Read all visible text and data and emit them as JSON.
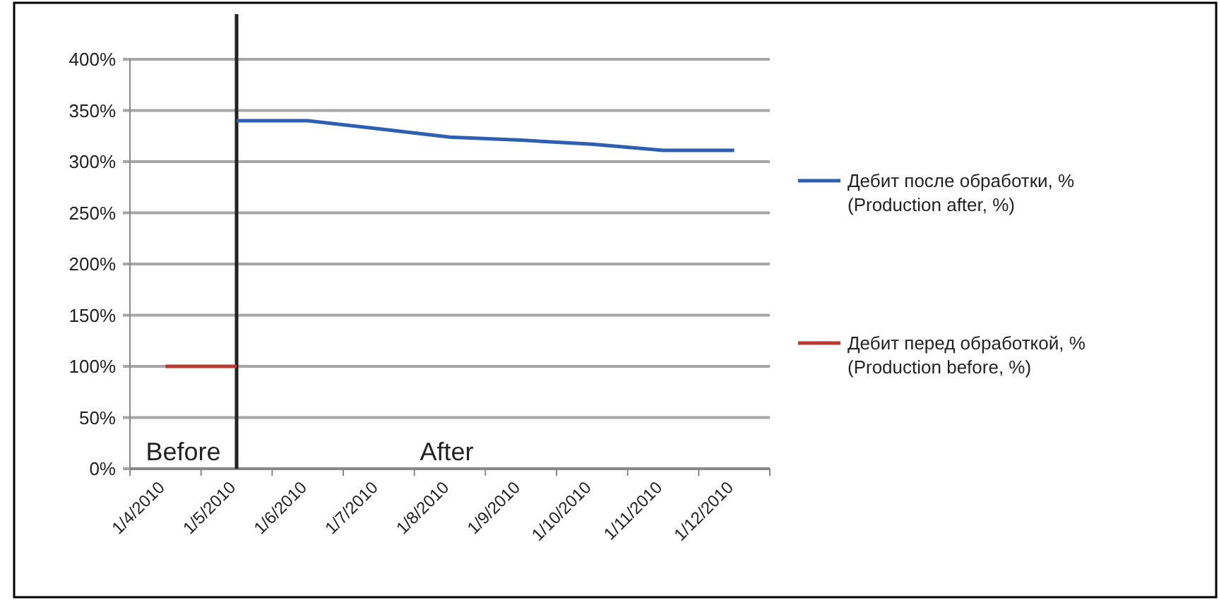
{
  "chart_data": {
    "type": "line",
    "categories": [
      "1/4/2010",
      "1/5/2010",
      "1/6/2010",
      "1/7/2010",
      "1/8/2010",
      "1/9/2010",
      "1/10/2010",
      "1/11/2010",
      "1/12/2010"
    ],
    "series": [
      {
        "name": "Дебит после обработки, %\n(Production after, %)",
        "color": "#2e5fb0",
        "values": [
          null,
          340,
          340,
          332,
          324,
          321,
          317,
          311,
          311
        ]
      },
      {
        "name": "Дебит перед обработкой, %\n(Production before, %)",
        "color": "#b83a30",
        "values": [
          100,
          100,
          null,
          null,
          null,
          null,
          null,
          null,
          null
        ]
      }
    ],
    "ylim": [
      0,
      400
    ],
    "yticks": [
      {
        "value": 0,
        "label": "0%"
      },
      {
        "value": 50,
        "label": "50%"
      },
      {
        "value": 100,
        "label": "100%"
      },
      {
        "value": 150,
        "label": "150%"
      },
      {
        "value": 200,
        "label": "200%"
      },
      {
        "value": 250,
        "label": "250%"
      },
      {
        "value": 300,
        "label": "300%"
      },
      {
        "value": 350,
        "label": "350%"
      },
      {
        "value": 400,
        "label": "400%"
      }
    ],
    "grid": "y",
    "legend": "right",
    "marker": "none",
    "line_style": "solid",
    "ref_lines": [
      {
        "axis": "x",
        "value": "1/5/2010",
        "color": "#222222"
      }
    ],
    "annotations": [
      "Before",
      "After"
    ]
  }
}
